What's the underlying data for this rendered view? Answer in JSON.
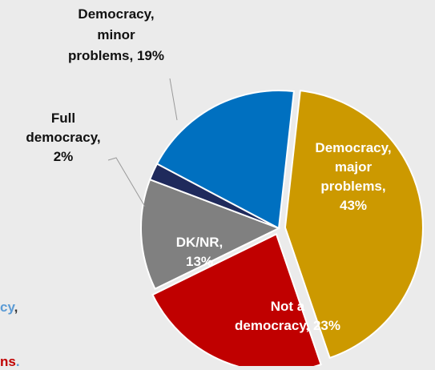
{
  "chart_data": {
    "type": "pie",
    "title": "",
    "slices": [
      {
        "label_lines": [
          "Democracy,",
          "major",
          "problems,",
          "43%"
        ],
        "value": 43,
        "color": "#cc9900",
        "exploded": true
      },
      {
        "label_lines": [
          "Not a",
          "democracy, 23%"
        ],
        "value": 23,
        "color": "#c00000",
        "exploded": true
      },
      {
        "label_lines": [
          "DK/NR,",
          "13%"
        ],
        "value": 13,
        "color": "#808080",
        "exploded": false
      },
      {
        "label_lines": [
          "Full",
          "democracy,",
          "2%"
        ],
        "value": 2,
        "color": "#1f2a5c",
        "exploded": false
      },
      {
        "label_lines": [
          "Democracy,",
          "minor",
          "problems, 19%"
        ],
        "value": 19,
        "color": "#0070c0",
        "exploded": false
      }
    ]
  },
  "side_text": {
    "fragment_top": "cy",
    "fragment_top_comma": ",",
    "fragment_bottom": "ns",
    "fragment_bottom_dot": ".",
    "color_top": "#5b9bd5",
    "color_bottom": "#c00000"
  }
}
